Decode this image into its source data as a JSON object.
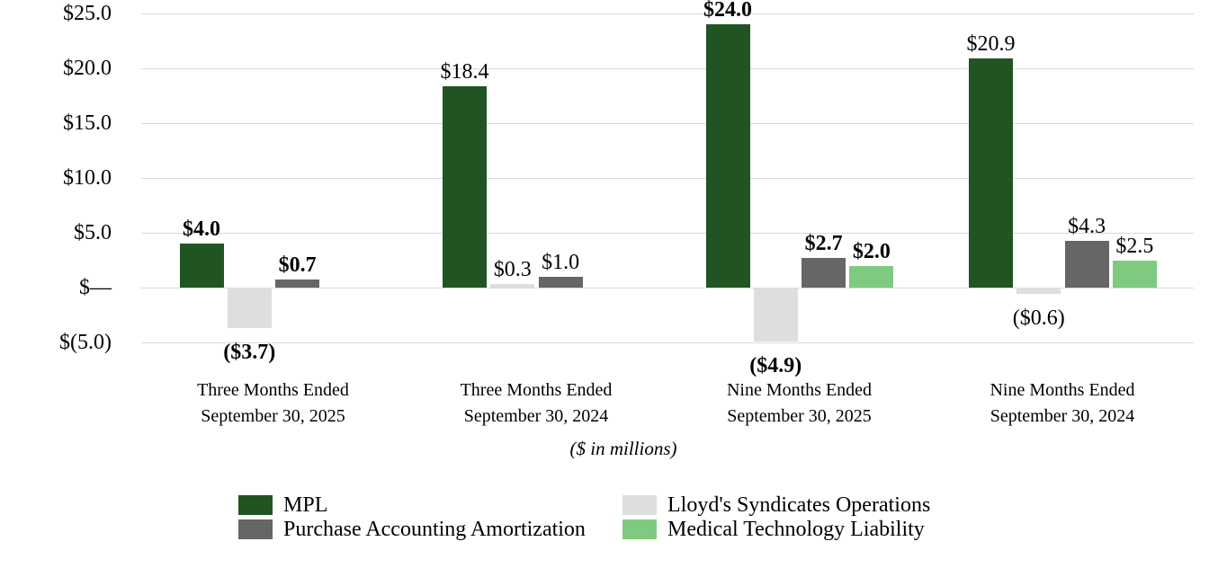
{
  "chart_data": {
    "type": "bar",
    "subtitle": "($ in millions)",
    "background": "#ffffff",
    "grid": true,
    "gridline_color": "#d9d9d9",
    "categories": [
      {
        "lines": [
          "Three Months Ended",
          "September 30, 2025"
        ],
        "bold_labels": true
      },
      {
        "lines": [
          "Three Months Ended",
          "September 30, 2024"
        ],
        "bold_labels": false
      },
      {
        "lines": [
          "Nine Months Ended",
          "September 30, 2025"
        ],
        "bold_labels": true
      },
      {
        "lines": [
          "Nine Months Ended",
          "September 30, 2024"
        ],
        "bold_labels": false
      }
    ],
    "series": [
      {
        "name": "MPL",
        "color": "#205423",
        "values": [
          4.0,
          18.4,
          24.0,
          20.9
        ],
        "labels": [
          "$4.0",
          "$18.4",
          "$24.0",
          "$20.9"
        ]
      },
      {
        "name": "Lloyd's Syndicates Operations",
        "color": "#dedede",
        "values": [
          -3.7,
          0.3,
          -4.9,
          -0.6
        ],
        "labels": [
          "($3.7)",
          "$0.3",
          "($4.9)",
          "($0.6)"
        ]
      },
      {
        "name": "Purchase Accounting Amortization",
        "color": "#666666",
        "values": [
          0.7,
          1.0,
          2.7,
          4.3
        ],
        "labels": [
          "$0.7",
          "$1.0",
          "$2.7",
          "$4.3"
        ]
      },
      {
        "name": "Medical Technology Liability",
        "color": "#7fca81",
        "values": [
          null,
          null,
          2.0,
          2.5
        ],
        "labels": [
          null,
          null,
          "$2.0",
          "$2.5"
        ]
      }
    ],
    "y_axis": {
      "range": [
        -5,
        25
      ],
      "tick_step": 5,
      "ticks": [
        {
          "value": 25,
          "label": "$25.0"
        },
        {
          "value": 20,
          "label": "$20.0"
        },
        {
          "value": 15,
          "label": "$15.0"
        },
        {
          "value": 10,
          "label": "$10.0"
        },
        {
          "value": 5,
          "label": "$5.0"
        },
        {
          "value": 0,
          "label": "$—"
        },
        {
          "value": -5,
          "label": "$(5.0)"
        }
      ]
    },
    "legend": {
      "position": "bottom",
      "columns": 2,
      "row_major_order": [
        "MPL",
        "Lloyd's Syndicates Operations",
        "Purchase Accounting Amortization",
        "Medical Technology Liability"
      ]
    }
  }
}
